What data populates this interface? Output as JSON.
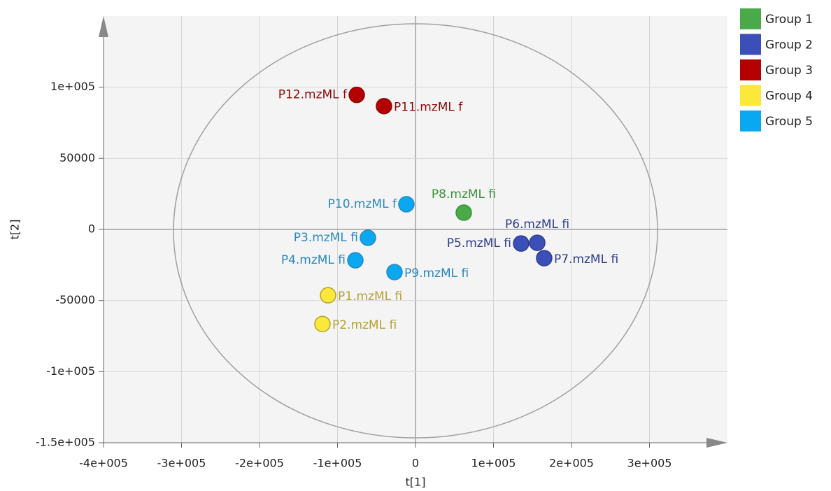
{
  "chart_data": {
    "type": "scatter",
    "x_label": "t[1]",
    "y_label": "t[2]",
    "xlim": [
      -400000,
      400000
    ],
    "ylim": [
      -150000,
      150000
    ],
    "xticks": [
      {
        "value": -400000,
        "label": "-4e+005"
      },
      {
        "value": -300000,
        "label": "-3e+005"
      },
      {
        "value": -200000,
        "label": "-2e+005"
      },
      {
        "value": -100000,
        "label": "-1e+005"
      },
      0,
      {
        "value": 100000,
        "label": "1e+005"
      },
      {
        "value": 200000,
        "label": "2e+005"
      },
      {
        "value": 300000,
        "label": "3e+005"
      }
    ],
    "yticks": [
      {
        "value": -150000,
        "label": "-1.5e+005"
      },
      {
        "value": -100000,
        "label": "-1e+005"
      },
      -50000,
      0,
      50000,
      {
        "value": 100000,
        "label": "1e+005"
      }
    ],
    "grid": true,
    "legend": "right",
    "series": [
      {
        "name": "Group 1",
        "color": "#4aaa4a",
        "label_color": "#3d8f3d",
        "x": [
          61900
        ],
        "y": [
          11800
        ],
        "labels": [
          "P8.mzML fi"
        ]
      },
      {
        "name": "Group 2",
        "color": "#3b4fb8",
        "label_color": "#2f3d8c",
        "x": [
          135400,
          156100,
          165000
        ],
        "y": [
          -9900,
          -9400,
          -20200
        ],
        "labels": [
          "P5.mzML fi",
          "P6.mzML fi",
          "P7.mzML fi"
        ]
      },
      {
        "name": "Group 3",
        "color": "#b30000",
        "label_color": "#8b0a0a",
        "x": [
          -75300,
          -40400
        ],
        "y": [
          94600,
          86700
        ],
        "labels": [
          "P12.mzML f",
          "P11.mzML f"
        ]
      },
      {
        "name": "Group 4",
        "color": "#fbe83a",
        "label_color": "#b3a230",
        "x": [
          -112100,
          -119300
        ],
        "y": [
          -46300,
          -66500
        ],
        "labels": [
          "P1.mzML fi",
          "P2.mzML fi"
        ]
      },
      {
        "name": "Group 5",
        "color": "#0aa8f0",
        "label_color": "#2a87bd",
        "x": [
          -11700,
          -61000,
          -77100,
          -26900
        ],
        "y": [
          17700,
          -5900,
          -21700,
          -30000
        ],
        "labels": [
          "P10.mzML f",
          "P3.mzML fi",
          "P4.mzML fi",
          "P9.mzML fi"
        ]
      }
    ]
  }
}
